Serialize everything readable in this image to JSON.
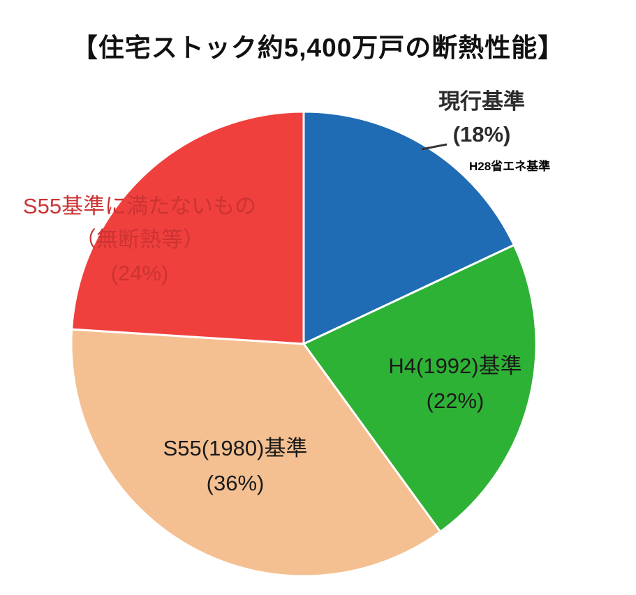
{
  "title": "【住宅ストック約5,400万戸の断熱性能】",
  "chart_data": {
    "type": "pie",
    "title": "住宅ストック約5,400万戸の断熱性能",
    "total_units_note": "約5,400万戸",
    "start_angle_deg": -90,
    "direction": "clockwise",
    "slices": [
      {
        "label": "現行基準",
        "pct": 18,
        "color": "#1f6cb5"
      },
      {
        "label": "H4(1992)基準",
        "pct": 22,
        "color": "#2eb235"
      },
      {
        "label": "S55(1980)基準",
        "pct": 36,
        "color": "#f4c091"
      },
      {
        "label": "S55基準に満たないもの（無断熱等）",
        "pct": 24,
        "color": "#ef403d"
      }
    ],
    "annotation": "H28省エネ基準",
    "legend": "none",
    "grid": false
  },
  "labels": {
    "current": {
      "line1": "現行基準",
      "line2": "(18%)"
    },
    "annotation": "H28省エネ基準",
    "below": {
      "line1": "S55基準に満たないもの",
      "line2": "（無断熱等）",
      "line3": "(24%)"
    },
    "h4": {
      "line1": "H4(1992)基準",
      "line2": "(22%)"
    },
    "s55": {
      "line1": "S55(1980)基準",
      "line2": "(36%)"
    }
  },
  "colors": {
    "below_label_text": "#cc3333",
    "slice_border": "#ffffff",
    "leader_line": "#333333"
  }
}
